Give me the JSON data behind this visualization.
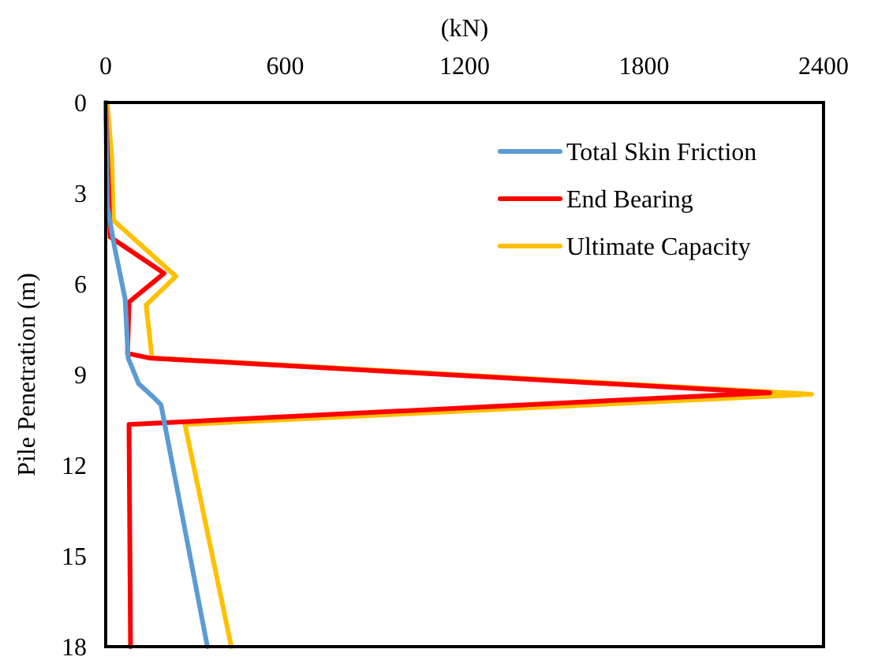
{
  "chart_data": {
    "type": "line",
    "xlabel": "(kN)",
    "ylabel": "Pile Penetration (m)",
    "xlim": [
      0,
      2400
    ],
    "xticks": [
      0,
      600,
      1200,
      1800,
      2400
    ],
    "ylim": [
      18,
      0
    ],
    "yticks": [
      0,
      3,
      6,
      9,
      12,
      15,
      18
    ],
    "legend": "top right",
    "grid": false,
    "marker": "none",
    "line_style": "solid",
    "series": [
      {
        "name": "Total Skin Friction",
        "color": "#5b9bd5",
        "x": [
          0,
          5,
          30,
          65,
          75,
          110,
          160,
          185,
          340
        ],
        "values": [
          0,
          3.4,
          4.8,
          6.5,
          8.45,
          9.3,
          9.75,
          10.0,
          18
        ]
      },
      {
        "name": "End Bearing",
        "color": "#ff0000",
        "x": [
          0,
          10,
          15,
          195,
          78,
          73,
          145,
          2220,
          78,
          83
        ],
        "values": [
          0,
          2.9,
          4.45,
          5.65,
          6.6,
          8.3,
          8.45,
          9.6,
          10.65,
          18
        ]
      },
      {
        "name": "Ultimate Capacity",
        "color": "#ffc000",
        "x": [
          5,
          20,
          26,
          235,
          135,
          155,
          2360,
          265,
          420
        ],
        "values": [
          0,
          1.8,
          3.9,
          5.75,
          6.7,
          8.45,
          9.65,
          10.65,
          18
        ]
      }
    ]
  }
}
